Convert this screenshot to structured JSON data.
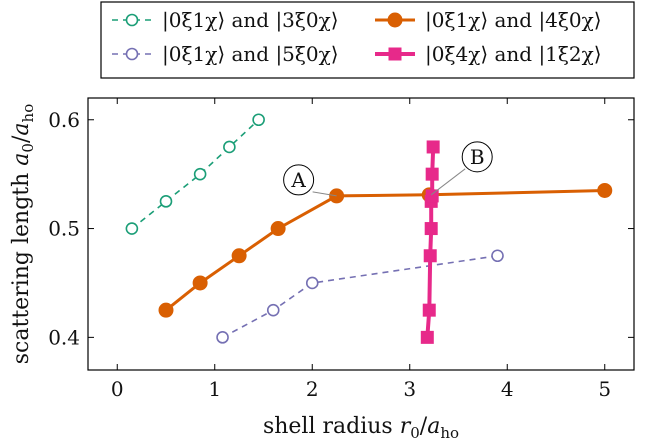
{
  "chart_data": {
    "type": "line",
    "xlabel": "shell radius r₀/aₕₒ",
    "ylabel": "scattering length a₀/aₕₒ",
    "xlim": [
      -0.3,
      5.3
    ],
    "ylim": [
      0.37,
      0.62
    ],
    "x_ticks": [
      0,
      1,
      2,
      3,
      4,
      5
    ],
    "y_ticks": [
      0.4,
      0.5,
      0.6
    ],
    "x_tick_labels": [
      "0",
      "1",
      "2",
      "3",
      "4",
      "5"
    ],
    "y_tick_labels": [
      "0.4",
      "0.5",
      "0.6"
    ],
    "grid": false,
    "legend_position": "top",
    "series": [
      {
        "name": "|0ξ1χ⟩ and |3ξ0χ⟩",
        "color": "#1b9e77",
        "style": "dashed",
        "marker": "open-circle",
        "x": [
          0.15,
          0.5,
          0.85,
          1.15,
          1.45
        ],
        "y": [
          0.5,
          0.525,
          0.55,
          0.575,
          0.6
        ]
      },
      {
        "name": "|0ξ1χ⟩ and |4ξ0χ⟩",
        "color": "#d95f02",
        "style": "solid",
        "marker": "filled-circle",
        "x": [
          0.5,
          0.85,
          1.25,
          1.65,
          2.25,
          3.2,
          5.0
        ],
        "y": [
          0.425,
          0.45,
          0.475,
          0.5,
          0.53,
          0.531,
          0.535
        ]
      },
      {
        "name": "|0ξ1χ⟩ and |5ξ0χ⟩",
        "color": "#7570b3",
        "style": "dashed",
        "marker": "open-circle",
        "x": [
          1.08,
          1.6,
          2.0,
          3.9
        ],
        "y": [
          0.4,
          0.425,
          0.45,
          0.475
        ]
      },
      {
        "name": "|0ξ4χ⟩ and |1ξ2χ⟩",
        "color": "#e7298a",
        "style": "solid",
        "marker": "filled-square",
        "x": [
          3.18,
          3.2,
          3.21,
          3.22,
          3.22,
          3.23,
          3.23,
          3.24
        ],
        "y": [
          0.4,
          0.425,
          0.475,
          0.5,
          0.525,
          0.53,
          0.55,
          0.575
        ]
      }
    ],
    "annotations": [
      {
        "text": "A",
        "x": 2.25,
        "y": 0.53
      },
      {
        "text": "B",
        "x": 3.22,
        "y": 0.531
      }
    ]
  }
}
